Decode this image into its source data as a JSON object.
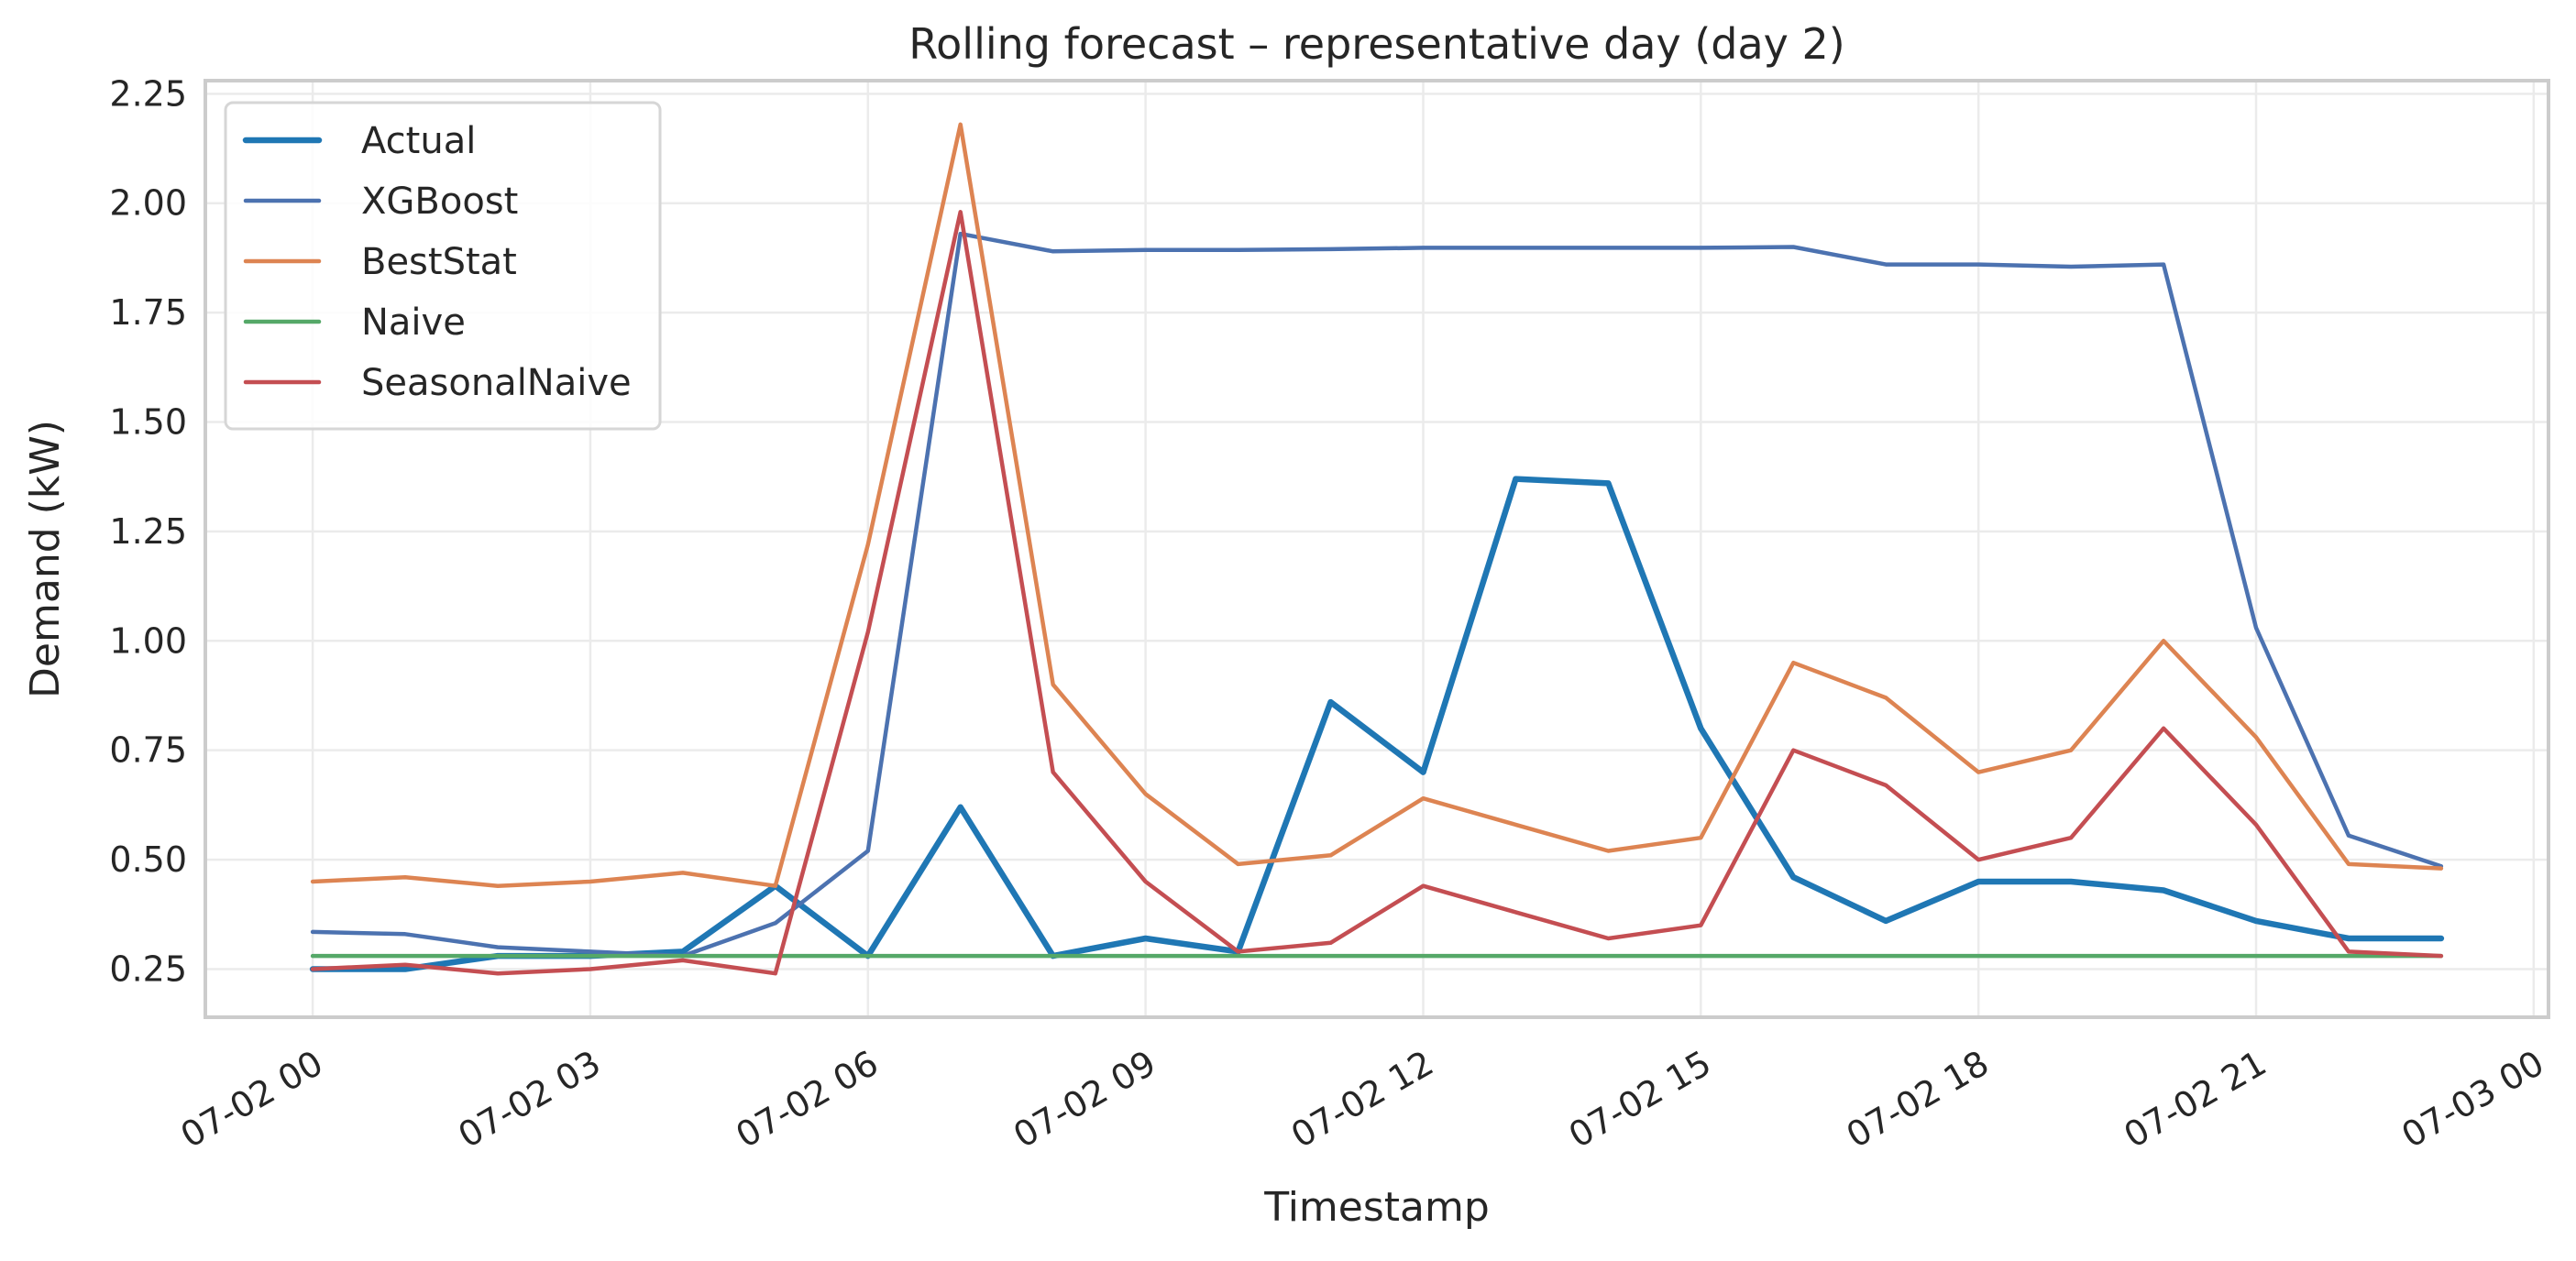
{
  "chart_data": {
    "type": "line",
    "title": "Rolling forecast – representative day (day 2)",
    "xlabel": "Timestamp",
    "ylabel": "Demand (kW)",
    "x": [
      "07-02 00:00",
      "07-02 01:00",
      "07-02 02:00",
      "07-02 03:00",
      "07-02 04:00",
      "07-02 05:00",
      "07-02 06:00",
      "07-02 07:00",
      "07-02 08:00",
      "07-02 09:00",
      "07-02 10:00",
      "07-02 11:00",
      "07-02 12:00",
      "07-02 13:00",
      "07-02 14:00",
      "07-02 15:00",
      "07-02 16:00",
      "07-02 17:00",
      "07-02 18:00",
      "07-02 19:00",
      "07-02 20:00",
      "07-02 21:00",
      "07-02 22:00",
      "07-02 23:00"
    ],
    "x_ticks": [
      "07-02 00",
      "07-02 03",
      "07-02 06",
      "07-02 09",
      "07-02 12",
      "07-02 15",
      "07-02 18",
      "07-02 21",
      "07-03 00"
    ],
    "x_tick_hours": [
      0,
      3,
      6,
      9,
      12,
      15,
      18,
      21,
      24
    ],
    "xlim_hours": [
      -1.16,
      24.16
    ],
    "ylim": [
      0.14,
      2.28
    ],
    "y_ticks": [
      "0.25",
      "0.50",
      "0.75",
      "1.00",
      "1.25",
      "1.50",
      "1.75",
      "2.00",
      "2.25"
    ],
    "grid": true,
    "legend_position": "top-left",
    "series": [
      {
        "name": "Actual",
        "color": "#1f77b4",
        "width": 6.5,
        "values": [
          0.25,
          0.25,
          0.28,
          0.28,
          0.29,
          0.44,
          0.28,
          0.62,
          0.28,
          0.32,
          0.29,
          0.86,
          0.7,
          1.37,
          1.36,
          0.8,
          0.46,
          0.36,
          0.45,
          0.45,
          0.43,
          0.36,
          0.32,
          0.32
        ]
      },
      {
        "name": "XGBoost",
        "color": "#4c72b0",
        "width": 4.5,
        "values": [
          0.335,
          0.33,
          0.3,
          0.29,
          0.28,
          0.355,
          0.52,
          1.93,
          1.89,
          1.893,
          1.893,
          1.895,
          1.898,
          1.898,
          1.898,
          1.898,
          1.9,
          1.86,
          1.86,
          1.855,
          1.86,
          1.03,
          0.555,
          0.485
        ]
      },
      {
        "name": "BestStat",
        "color": "#dd8452",
        "width": 4.5,
        "values": [
          0.45,
          0.46,
          0.44,
          0.45,
          0.47,
          0.44,
          1.22,
          2.18,
          0.9,
          0.65,
          0.49,
          0.51,
          0.64,
          0.58,
          0.52,
          0.55,
          0.95,
          0.87,
          0.7,
          0.75,
          1.0,
          0.78,
          0.49,
          0.48
        ]
      },
      {
        "name": "Naive",
        "color": "#55a868",
        "width": 4.5,
        "values": [
          0.28,
          0.28,
          0.28,
          0.28,
          0.28,
          0.28,
          0.28,
          0.28,
          0.28,
          0.28,
          0.28,
          0.28,
          0.28,
          0.28,
          0.28,
          0.28,
          0.28,
          0.28,
          0.28,
          0.28,
          0.28,
          0.28,
          0.28,
          0.28
        ]
      },
      {
        "name": "SeasonalNaive",
        "color": "#c44e52",
        "width": 4.5,
        "values": [
          0.25,
          0.26,
          0.24,
          0.25,
          0.27,
          0.24,
          1.02,
          1.98,
          0.7,
          0.45,
          0.29,
          0.31,
          0.44,
          0.38,
          0.32,
          0.35,
          0.75,
          0.67,
          0.5,
          0.55,
          0.8,
          0.58,
          0.29,
          0.28
        ]
      }
    ]
  }
}
